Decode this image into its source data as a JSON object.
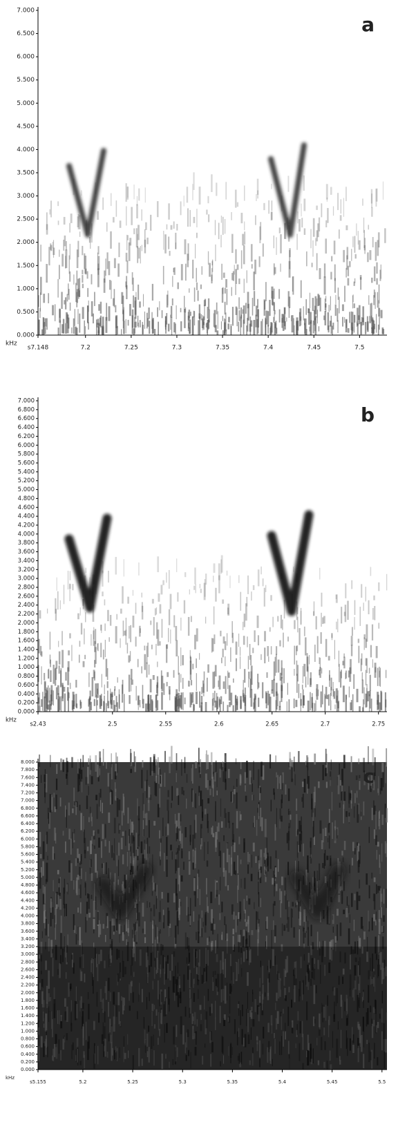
{
  "chart_data": [
    {
      "type": "spectrogram",
      "panel": "a",
      "y_label": "kHz",
      "xlim": [
        7.148,
        7.53
      ],
      "ylim": [
        0,
        7
      ],
      "xticks": [
        {
          "value": 7.148,
          "label": "s7.148"
        },
        7.2,
        7.25,
        7.3,
        7.35,
        7.4,
        7.45,
        7.5
      ],
      "yticks": [
        {
          "value": 0,
          "label": "0.000"
        },
        {
          "value": 0.5,
          "label": "0.500"
        },
        {
          "value": 1,
          "label": "1.000"
        },
        {
          "value": 1.5,
          "label": "1.500"
        },
        {
          "value": 2,
          "label": "2.000"
        },
        {
          "value": 2.5,
          "label": "2.500"
        },
        {
          "value": 3,
          "label": "3.000"
        },
        {
          "value": 3.5,
          "label": "3.500"
        },
        {
          "value": 4,
          "label": "4.000"
        },
        {
          "value": 4.5,
          "label": "4.500"
        },
        {
          "value": 5,
          "label": "5.000"
        },
        {
          "value": 5.5,
          "label": "5.500"
        },
        {
          "value": 6,
          "label": "6.000"
        },
        {
          "value": 6.5,
          "label": "6.500"
        },
        {
          "value": 7,
          "label": "7.000"
        }
      ]
    },
    {
      "type": "spectrogram",
      "panel": "b",
      "y_label": "kHz",
      "xlim": [
        2.43,
        2.758
      ],
      "ylim": [
        0,
        7
      ],
      "xticks": [
        {
          "value": 2.43,
          "label": "s2.43"
        },
        2.5,
        2.55,
        2.6,
        2.65,
        2.7,
        2.75
      ],
      "yticks": [
        {
          "value": 0,
          "label": "0.000"
        },
        {
          "value": 0.2,
          "label": "0.200"
        },
        {
          "value": 0.4,
          "label": "0.400"
        },
        {
          "value": 0.6,
          "label": "0.600"
        },
        {
          "value": 0.8,
          "label": "0.800"
        },
        {
          "value": 1,
          "label": "1.000"
        },
        {
          "value": 1.2,
          "label": "1.200"
        },
        {
          "value": 1.4,
          "label": "1.400"
        },
        {
          "value": 1.6,
          "label": "1.600"
        },
        {
          "value": 1.8,
          "label": "1.800"
        },
        {
          "value": 2,
          "label": "2.000"
        },
        {
          "value": 2.2,
          "label": "2.200"
        },
        {
          "value": 2.4,
          "label": "2.400"
        },
        {
          "value": 2.6,
          "label": "2.600"
        },
        {
          "value": 2.8,
          "label": "2.800"
        },
        {
          "value": 3,
          "label": "3.000"
        },
        {
          "value": 3.2,
          "label": "3.200"
        },
        {
          "value": 3.4,
          "label": "3.400"
        },
        {
          "value": 3.6,
          "label": "3.600"
        },
        {
          "value": 3.8,
          "label": "3.800"
        },
        {
          "value": 4,
          "label": "4.000"
        },
        {
          "value": 4.2,
          "label": "4.200"
        },
        {
          "value": 4.4,
          "label": "4.400"
        },
        {
          "value": 4.6,
          "label": "4.600"
        },
        {
          "value": 4.8,
          "label": "4.800"
        },
        {
          "value": 5,
          "label": "5.000"
        },
        {
          "value": 5.2,
          "label": "5.200"
        },
        {
          "value": 5.4,
          "label": "5.400"
        },
        {
          "value": 5.6,
          "label": "5.600"
        },
        {
          "value": 5.8,
          "label": "5.800"
        },
        {
          "value": 6,
          "label": "6.000"
        },
        {
          "value": 6.2,
          "label": "6.200"
        },
        {
          "value": 6.4,
          "label": "6.400"
        },
        {
          "value": 6.6,
          "label": "6.600"
        },
        {
          "value": 6.8,
          "label": "6.800"
        },
        {
          "value": 7,
          "label": "7.000"
        }
      ]
    },
    {
      "type": "spectrogram",
      "panel": "c",
      "y_label": "kHz",
      "xlim": [
        5.155,
        5.505
      ],
      "ylim": [
        0,
        8
      ],
      "xticks": [
        {
          "value": 5.155,
          "label": "s5.155"
        },
        5.2,
        5.25,
        5.3,
        5.35,
        5.4,
        5.45,
        5.5
      ],
      "yticks": [
        {
          "value": 0,
          "label": "0.000"
        },
        {
          "value": 0.2,
          "label": "0.200"
        },
        {
          "value": 0.4,
          "label": "0.400"
        },
        {
          "value": 0.6,
          "label": "0.600"
        },
        {
          "value": 0.8,
          "label": "0.800"
        },
        {
          "value": 1,
          "label": "1.000"
        },
        {
          "value": 1.2,
          "label": "1.200"
        },
        {
          "value": 1.4,
          "label": "1.400"
        },
        {
          "value": 1.6,
          "label": "1.600"
        },
        {
          "value": 1.8,
          "label": "1.800"
        },
        {
          "value": 2,
          "label": "2.000"
        },
        {
          "value": 2.2,
          "label": "2.200"
        },
        {
          "value": 2.4,
          "label": "2.400"
        },
        {
          "value": 2.6,
          "label": "2.600"
        },
        {
          "value": 2.8,
          "label": "2.800"
        },
        {
          "value": 3,
          "label": "3.000"
        },
        {
          "value": 3.2,
          "label": "3.200"
        },
        {
          "value": 3.4,
          "label": "3.400"
        },
        {
          "value": 3.6,
          "label": "3.600"
        },
        {
          "value": 3.8,
          "label": "3.800"
        },
        {
          "value": 4,
          "label": "4.000"
        },
        {
          "value": 4.2,
          "label": "4.200"
        },
        {
          "value": 4.4,
          "label": "4.400"
        },
        {
          "value": 4.6,
          "label": "4.600"
        },
        {
          "value": 4.8,
          "label": "4.800"
        },
        {
          "value": 5,
          "label": "5.000"
        },
        {
          "value": 5.2,
          "label": "5.200"
        },
        {
          "value": 5.4,
          "label": "5.400"
        },
        {
          "value": 5.6,
          "label": "5.600"
        },
        {
          "value": 5.8,
          "label": "5.800"
        },
        {
          "value": 6,
          "label": "6.000"
        },
        {
          "value": 6.2,
          "label": "6.200"
        },
        {
          "value": 6.4,
          "label": "6.400"
        },
        {
          "value": 6.6,
          "label": "6.600"
        },
        {
          "value": 6.8,
          "label": "6.800"
        },
        {
          "value": 7,
          "label": "7.000"
        },
        {
          "value": 7.2,
          "label": "7.200"
        },
        {
          "value": 7.4,
          "label": "7.400"
        },
        {
          "value": 7.6,
          "label": "7.600"
        },
        {
          "value": 7.8,
          "label": "7.800"
        },
        {
          "value": 8,
          "label": "8.000"
        }
      ]
    }
  ]
}
